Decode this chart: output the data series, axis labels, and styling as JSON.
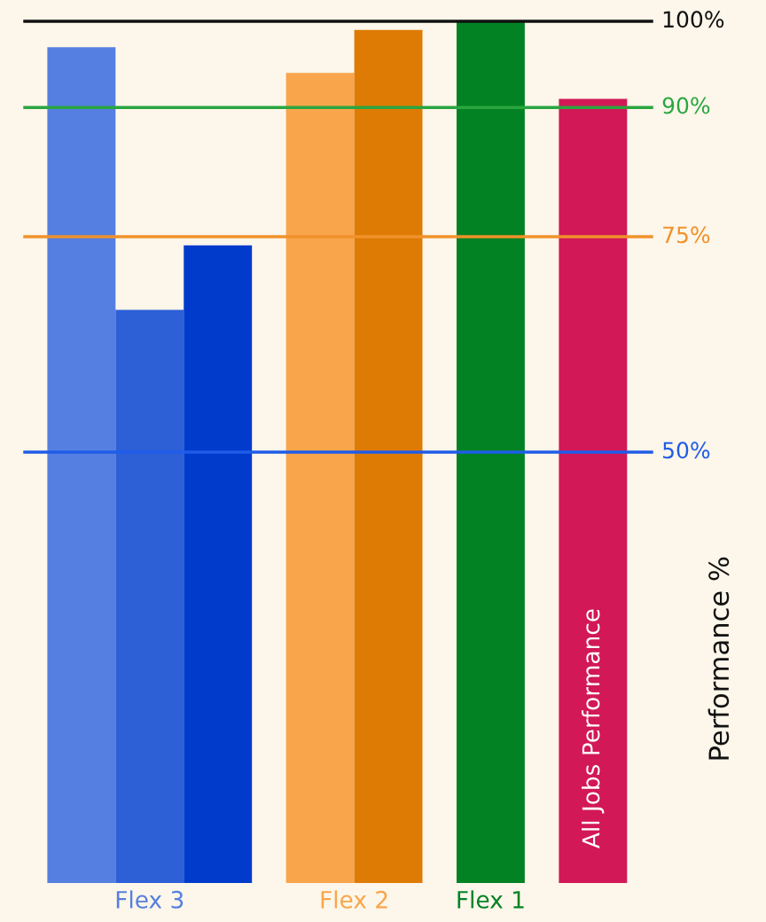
{
  "chart_data": {
    "type": "bar",
    "categories": [
      "Flex 3",
      "Flex 2",
      "Flex 1",
      "All Jobs Performance"
    ],
    "series": [
      {
        "colors": [
          "#557fe0",
          "#f9a54b",
          "#028223",
          "#d21857"
        ],
        "values": [
          97,
          94,
          100,
          91
        ]
      },
      {
        "colors": [
          "#2d5fd6",
          "#de7b05",
          null,
          null
        ],
        "values": [
          66.5,
          99,
          null,
          null
        ]
      },
      {
        "colors": [
          "#003bcc",
          null,
          null,
          null
        ],
        "values": [
          74,
          null,
          null,
          null
        ]
      }
    ],
    "ylim": [
      0,
      100
    ],
    "ylabel": "Performance %",
    "tick_labels": "x",
    "ref_lines": [
      {
        "axis": "y",
        "value": 100,
        "label": "100%",
        "color": "#111111"
      },
      {
        "axis": "y",
        "value": 90,
        "label": "90%",
        "color": "#2aa640"
      },
      {
        "axis": "y",
        "value": 75,
        "label": "75%",
        "color": "#f0922a"
      },
      {
        "axis": "y",
        "value": 50,
        "label": "50%",
        "color": "#1f5ce8"
      }
    ]
  }
}
